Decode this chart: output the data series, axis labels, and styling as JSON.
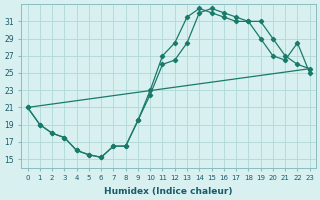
{
  "xlabel": "Humidex (Indice chaleur)",
  "bg_color": "#d8f0f0",
  "grid_color": "#b0d8d8",
  "line_color": "#1a7a6a",
  "xlim": [
    -0.5,
    23.5
  ],
  "ylim": [
    14,
    33
  ],
  "yticks": [
    15,
    17,
    19,
    21,
    23,
    25,
    27,
    29,
    31
  ],
  "xticks": [
    0,
    1,
    2,
    3,
    4,
    5,
    6,
    7,
    8,
    9,
    10,
    11,
    12,
    13,
    14,
    15,
    16,
    17,
    18,
    19,
    20,
    21,
    22,
    23
  ],
  "line1_x": [
    0,
    1,
    2,
    3,
    4,
    5,
    6,
    7,
    8,
    9,
    10,
    11,
    12,
    13,
    14,
    15,
    16,
    17,
    18,
    19,
    20,
    21,
    22,
    23
  ],
  "line1_y": [
    21,
    19,
    18,
    17.5,
    16,
    15.5,
    15.2,
    16.5,
    16.5,
    19.5,
    22.5,
    26,
    26.5,
    28.5,
    32,
    32.5,
    32,
    31.5,
    31,
    31,
    29,
    27,
    26,
    25.5
  ],
  "line2_x": [
    0,
    1,
    2,
    3,
    4,
    5,
    6,
    7,
    8,
    9,
    10,
    11,
    12,
    13,
    14,
    15,
    16,
    17,
    18,
    19,
    20,
    21,
    22,
    23
  ],
  "line2_y": [
    21,
    19,
    18,
    17.5,
    16,
    15.5,
    15.2,
    16.5,
    16.5,
    19.5,
    23.0,
    27.0,
    28.5,
    31.5,
    32.5,
    32.0,
    31.5,
    31.0,
    31.0,
    29.0,
    27.0,
    26.5,
    28.5,
    25.0
  ],
  "line3_x": [
    0,
    23
  ],
  "line3_y": [
    21,
    25.5
  ]
}
